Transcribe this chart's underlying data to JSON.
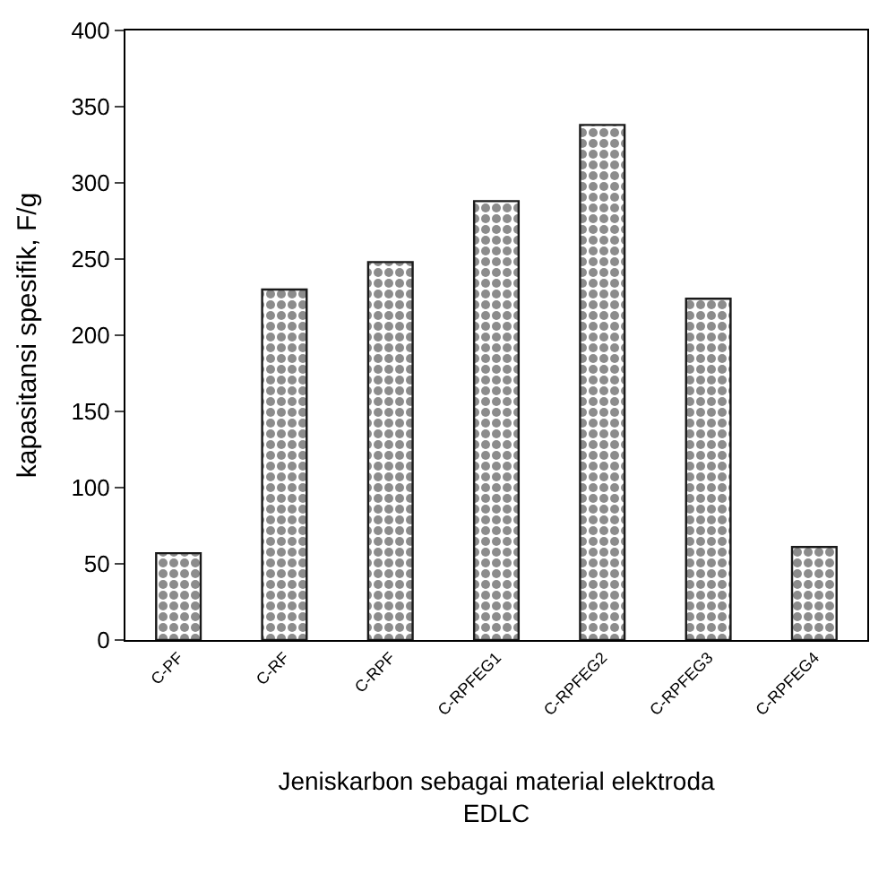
{
  "chart_data": {
    "type": "bar",
    "categories": [
      "C-PF",
      "C-RF",
      "C-RPF",
      "C-RPFEG1",
      "C-RPFEG2",
      "C-RPFEG3",
      "C-RPFEG4"
    ],
    "values": [
      57,
      230,
      248,
      288,
      338,
      224,
      61
    ],
    "color": "#1a1a1a",
    "xlabel": "Jeniskarbon sebagai material elektroda\nEDLC",
    "ylabel": "kapasitansi spesifik, F/g",
    "ylim": [
      0,
      400
    ],
    "yticks": [
      0,
      50,
      100,
      150,
      200,
      250,
      300,
      350,
      400
    ]
  }
}
